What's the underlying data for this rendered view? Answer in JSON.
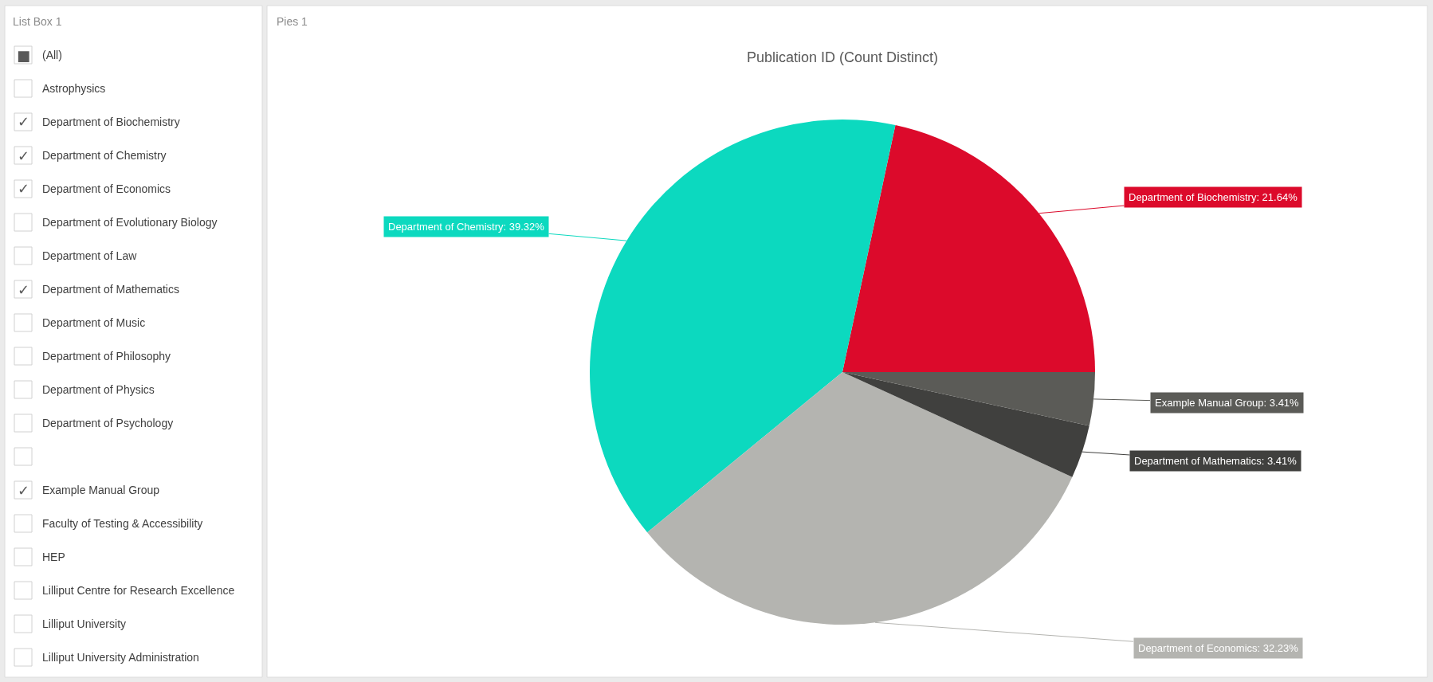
{
  "chart_data": [
    {
      "type": "other",
      "title": "List Box 1",
      "categories": [
        "(All)",
        "Astrophysics",
        "Department of Biochemistry",
        "Department of Chemistry",
        "Department of Economics",
        "Department of Evolutionary Biology",
        "Department of Law",
        "Department of Mathematics",
        "Department of Music",
        "Department of Philosophy",
        "Department of Physics",
        "Department of Psychology",
        null,
        "Example Manual Group",
        "Faculty of Testing & Accessibility",
        "HEP",
        "Lilliput Centre for Research Excellence",
        "Lilliput University",
        "Lilliput University Administration"
      ],
      "value_labels": [
        "■",
        null,
        "✓",
        "✓",
        "✓",
        null,
        null,
        "✓",
        null,
        null,
        null,
        null,
        null,
        "✓",
        null,
        null,
        null,
        null,
        null
      ]
    },
    {
      "type": "pie",
      "title": "Publication ID (Count Distinct)",
      "annotations": [
        "Pies 1"
      ],
      "categories": [
        "Department of Biochemistry",
        "Department of Chemistry",
        "Department of Economics",
        "Department of Mathematics",
        "Example Manual Group"
      ],
      "values": [
        21.64,
        39.32,
        32.23,
        3.41,
        3.41
      ],
      "value_labels": [
        "21.64%",
        "39.32%",
        "32.23%",
        "3.41%",
        "3.41%"
      ],
      "colors": [
        "#dc0a2b",
        "#0cd9bf",
        "#b4b4b0",
        "#40403e",
        "#5b5b57"
      ]
    }
  ]
}
